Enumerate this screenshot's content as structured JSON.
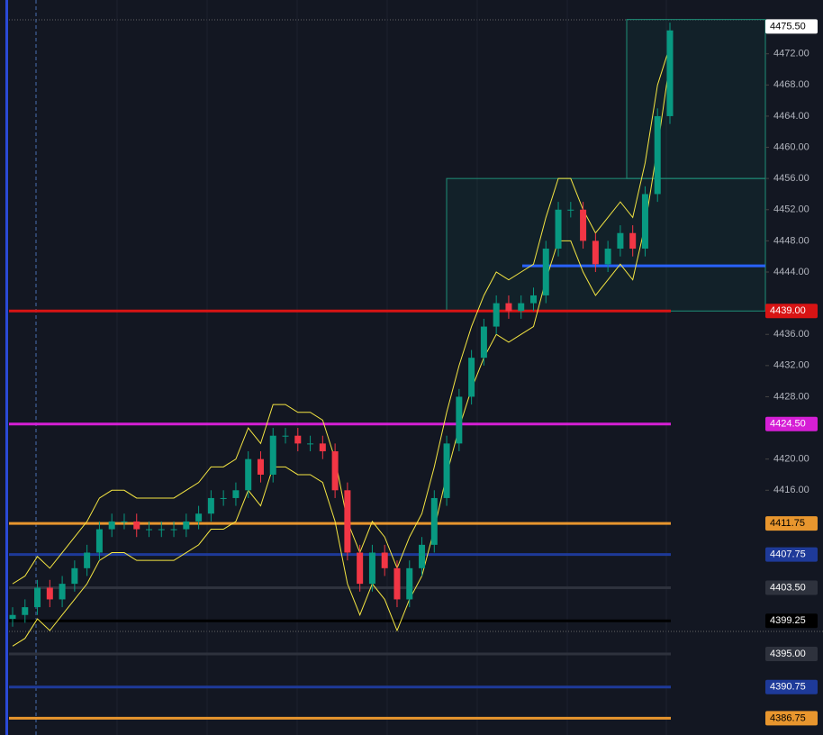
{
  "chart_data": {
    "type": "candlestick",
    "ylim": [
      4384.6,
      4478.9
    ],
    "yticks": [
      {
        "value": 4472,
        "label": "4472.00"
      },
      {
        "value": 4468,
        "label": "4468.00"
      },
      {
        "value": 4464,
        "label": "4464.00"
      },
      {
        "value": 4460,
        "label": "4460.00"
      },
      {
        "value": 4456,
        "label": "4456.00"
      },
      {
        "value": 4452,
        "label": "4452.00"
      },
      {
        "value": 4448,
        "label": "4448.00"
      },
      {
        "value": 4444,
        "label": "4444.00"
      },
      {
        "value": 4436,
        "label": "4436.00"
      },
      {
        "value": 4432,
        "label": "4432.00"
      },
      {
        "value": 4428,
        "label": "4428.00"
      },
      {
        "value": 4420,
        "label": "4420.00"
      },
      {
        "value": 4416,
        "label": "4416.00"
      }
    ],
    "up_color": "#089981",
    "down_color": "#f23645",
    "band_color": "#f5e642",
    "open": [
      4399.5,
      4400,
      4401,
      4403.5,
      4402,
      4404,
      4406,
      4408,
      4411,
      4412,
      4412,
      4411,
      4411,
      4411,
      4411,
      4412,
      4413,
      4415,
      4415,
      4416,
      4420,
      4418,
      4423,
      4423,
      4422,
      4422,
      4421,
      4416,
      4408,
      4404,
      4408,
      4406,
      4402,
      4406,
      4409,
      4415,
      4422,
      4428,
      4433,
      4437,
      4440,
      4439,
      4440,
      4441,
      4447,
      4452,
      4452,
      4448,
      4445,
      4447,
      4449,
      4447,
      4454,
      4464
    ],
    "high": [
      4401,
      4402,
      4404.5,
      4404.5,
      4405,
      4407,
      4409,
      4412,
      4413,
      4413,
      4413,
      4412,
      4412,
      4412,
      4413,
      4414,
      4416,
      4416,
      4417,
      4421,
      4421,
      4424,
      4424,
      4424,
      4423,
      4423,
      4422,
      4417,
      4409,
      4409,
      4409,
      4407,
      4407,
      4410,
      4416,
      4423,
      4429,
      4434,
      4438,
      4441,
      4441,
      4441,
      4442,
      4448,
      4453,
      4453,
      4453,
      4449,
      4448,
      4450,
      4450,
      4455,
      4465,
      4476
    ],
    "low": [
      4398.5,
      4399,
      4400,
      4401,
      4401,
      4403,
      4405,
      4407,
      4410,
      4411,
      4410,
      4410,
      4410,
      4410,
      4410,
      4411,
      4412,
      4414,
      4414,
      4415,
      4417,
      4417,
      4422,
      4421,
      4421,
      4420,
      4415,
      4407,
      4403,
      4403,
      4405,
      4401,
      4401,
      4405,
      4408,
      4414,
      4421,
      4427,
      4432,
      4436,
      4438,
      4438,
      4439,
      4440,
      4446,
      4451,
      4447,
      4444,
      4444,
      4446,
      4446,
      4446,
      4453,
      4463
    ],
    "close": [
      4400,
      4401,
      4403.5,
      4402,
      4404,
      4406,
      4408,
      4411,
      4412,
      4412,
      4411,
      4411,
      4411,
      4411,
      4412,
      4413,
      4415,
      4415,
      4416,
      4420,
      4418,
      4423,
      4423,
      4422,
      4422,
      4421,
      4416,
      4408,
      4404,
      4408,
      4406,
      4402,
      4406,
      4409,
      4415,
      4422,
      4428,
      4433,
      4437,
      4440,
      4439,
      4440,
      4441,
      4447,
      4452,
      4452,
      4448,
      4445,
      4447,
      4449,
      4447,
      4454,
      4464,
      4475
    ],
    "upper": [
      4404,
      4405,
      4407.5,
      4406,
      4408,
      4410,
      4412,
      4415,
      4416,
      4416,
      4415,
      4415,
      4415,
      4415,
      4416,
      4417,
      4419,
      4419,
      4420,
      4424,
      4422,
      4427,
      4427,
      4426,
      4426,
      4425,
      4420,
      4412,
      4408,
      4412,
      4410,
      4406,
      4410,
      4413,
      4419,
      4426,
      4432,
      4437,
      4441,
      4444,
      4443,
      4444,
      4445,
      4451,
      4456,
      4456,
      4452,
      4449,
      4451,
      4453,
      4451,
      4458,
      4468,
      4473
    ],
    "lower": [
      4396,
      4397,
      4399.5,
      4398,
      4400,
      4402,
      4404,
      4407,
      4408,
      4408,
      4407,
      4407,
      4407,
      4407,
      4408,
      4409,
      4411,
      4411,
      4412,
      4416,
      4414,
      4419,
      4419,
      4418,
      4418,
      4417,
      4412,
      4404,
      4400,
      4404,
      4402,
      4398,
      4402,
      4405,
      4411,
      4418,
      4424,
      4429,
      4433,
      4436,
      4435,
      4436,
      4437,
      4443,
      4448,
      4448,
      4444,
      4441,
      4443,
      4445,
      4443,
      4450,
      4460,
      4471
    ],
    "levels": [
      {
        "value": 4475.5,
        "label": "4475.50",
        "color": "#ffffff",
        "text_color": "#000000"
      },
      {
        "value": 4439,
        "label": "4439.00",
        "color": "#d81414",
        "text_color": "#ffffff"
      },
      {
        "value": 4424.5,
        "label": "4424.50",
        "color": "#d51fd5",
        "text_color": "#ffffff"
      },
      {
        "value": 4411.75,
        "label": "4411.75",
        "color": "#e8962e",
        "text_color": "#000000"
      },
      {
        "value": 4407.75,
        "label": "4407.75",
        "color": "#1e3a99",
        "text_color": "#ffffff"
      },
      {
        "value": 4403.5,
        "label": "4403.50",
        "color": "#2e323d",
        "text_color": "#ffffff"
      },
      {
        "value": 4399.25,
        "label": "4399.25",
        "color": "#000000",
        "text_color": "#ffffff"
      },
      {
        "value": 4395,
        "label": "4395.00",
        "color": "#2e323d",
        "text_color": "#ffffff"
      },
      {
        "value": 4390.75,
        "label": "4390.75",
        "color": "#1e3a99",
        "text_color": "#ffffff"
      },
      {
        "value": 4386.75,
        "label": "4386.75",
        "color": "#e8962e",
        "text_color": "#000000"
      }
    ],
    "pivot": {
      "value": 4444.8,
      "color": "#2962ff"
    },
    "zones": [
      {
        "low": 4439,
        "high": 4456
      },
      {
        "low": 4456,
        "high": 4476.4
      }
    ]
  }
}
